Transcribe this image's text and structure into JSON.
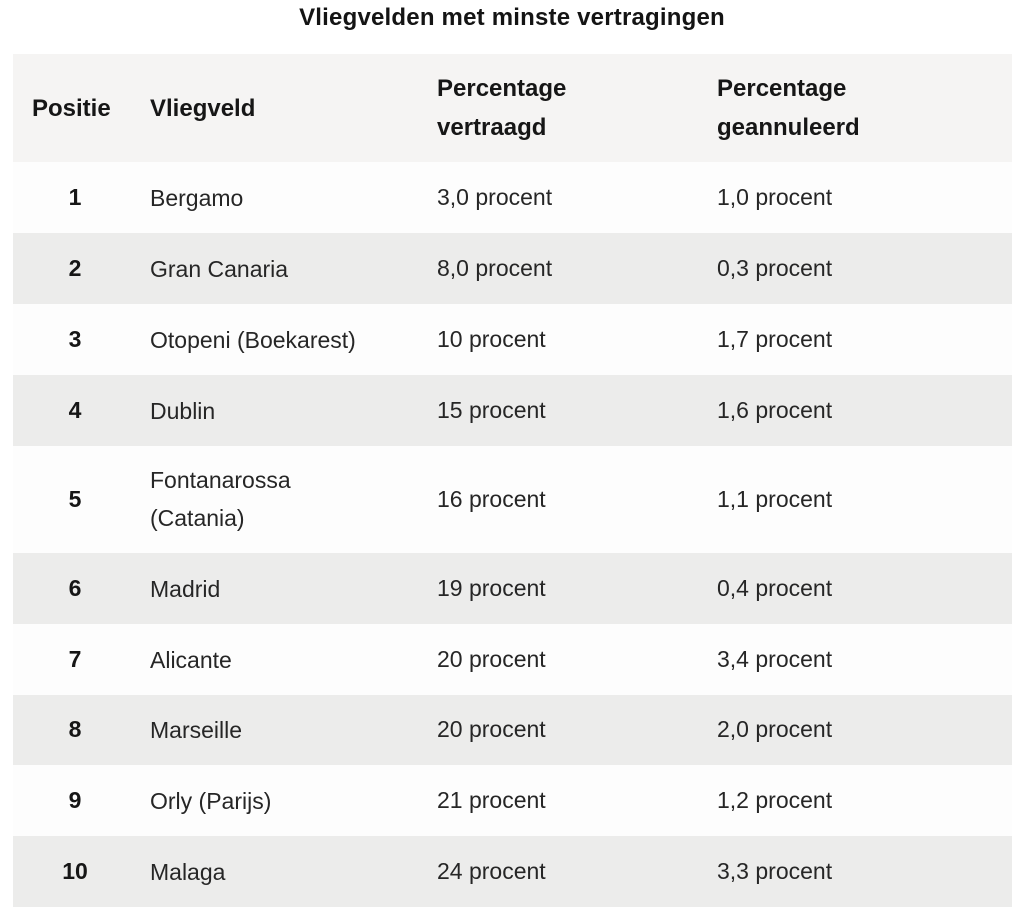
{
  "title": "Vliegvelden met minste vertragingen",
  "table": {
    "headers": {
      "positie": "Positie",
      "vliegveld": "Vliegveld",
      "vertraagd": "Percentage vertraagd",
      "geannuleerd": "Percentage geannuleerd"
    },
    "rows": [
      {
        "positie": "1",
        "vliegveld": "Bergamo",
        "vertraagd": "3,0 procent",
        "geannuleerd": "1,0 procent"
      },
      {
        "positie": "2",
        "vliegveld": "Gran Canaria",
        "vertraagd": "8,0 procent",
        "geannuleerd": "0,3 procent"
      },
      {
        "positie": "3",
        "vliegveld": "Otopeni (Boekarest)",
        "vertraagd": "10 procent",
        "geannuleerd": "1,7 procent"
      },
      {
        "positie": "4",
        "vliegveld": "Dublin",
        "vertraagd": "15 procent",
        "geannuleerd": "1,6 procent"
      },
      {
        "positie": "5",
        "vliegveld": "Fontanarossa (Catania)",
        "vertraagd": "16 procent",
        "geannuleerd": "1,1 procent"
      },
      {
        "positie": "6",
        "vliegveld": "Madrid",
        "vertraagd": "19 procent",
        "geannuleerd": "0,4 procent"
      },
      {
        "positie": "7",
        "vliegveld": "Alicante",
        "vertraagd": "20 procent",
        "geannuleerd": "3,4 procent"
      },
      {
        "positie": "8",
        "vliegveld": "Marseille",
        "vertraagd": "20 procent",
        "geannuleerd": "2,0 procent"
      },
      {
        "positie": "9",
        "vliegveld": "Orly (Parijs)",
        "vertraagd": "21 procent",
        "geannuleerd": "1,2 procent"
      },
      {
        "positie": "10",
        "vliegveld": "Malaga",
        "vertraagd": "24 procent",
        "geannuleerd": "3,3 procent"
      }
    ]
  },
  "colors": {
    "header_bg": "#f5f4f3",
    "row_even_bg": "#ececeb",
    "row_odd_bg": "#fdfdfd",
    "text": "#262626",
    "heading_text": "#161616",
    "page_bg": "#ffffff"
  },
  "chart_data": {
    "type": "table",
    "title": "Vliegvelden met minste vertragingen",
    "columns": [
      "Positie",
      "Vliegveld",
      "Percentage vertraagd",
      "Percentage geannuleerd"
    ],
    "rows": [
      [
        1,
        "Bergamo",
        3.0,
        1.0
      ],
      [
        2,
        "Gran Canaria",
        8.0,
        0.3
      ],
      [
        3,
        "Otopeni (Boekarest)",
        10,
        1.7
      ],
      [
        4,
        "Dublin",
        15,
        1.6
      ],
      [
        5,
        "Fontanarossa (Catania)",
        16,
        1.1
      ],
      [
        6,
        "Madrid",
        19,
        0.4
      ],
      [
        7,
        "Alicante",
        20,
        3.4
      ],
      [
        8,
        "Marseille",
        20,
        2.0
      ],
      [
        9,
        "Orly (Parijs)",
        21,
        1.2
      ],
      [
        10,
        "Malaga",
        24,
        3.3
      ]
    ],
    "units": "procent",
    "notes": "Values shown with Dutch decimal commas as 'x,y procent'"
  }
}
